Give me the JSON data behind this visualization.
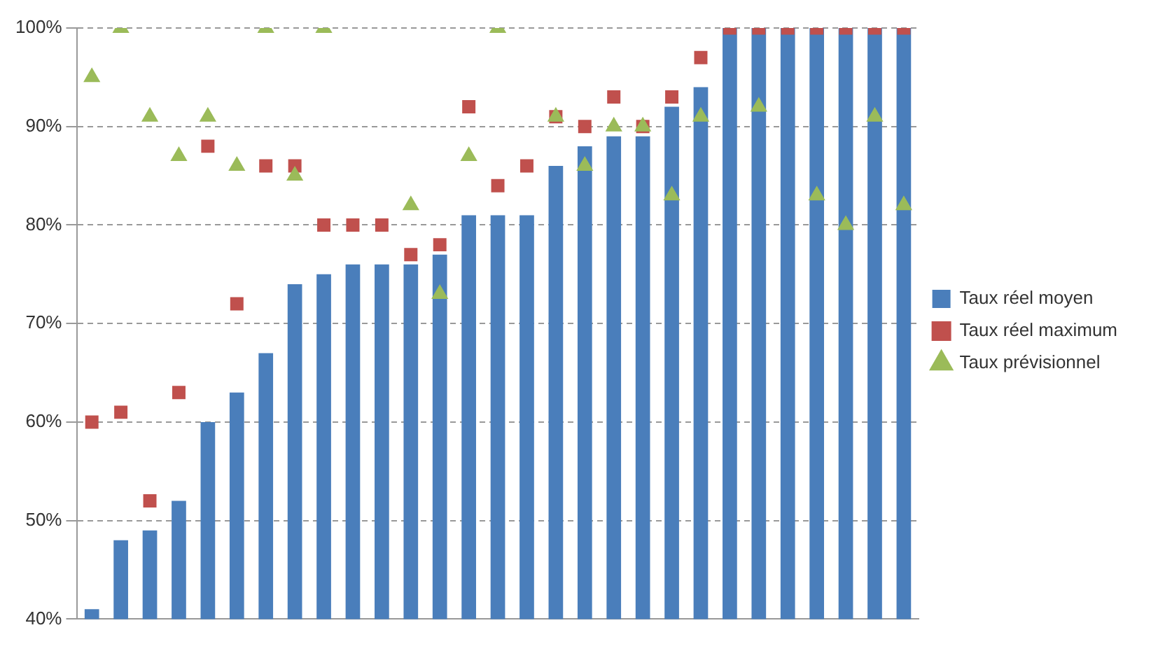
{
  "chart_data": {
    "type": "bar",
    "categories": [
      null,
      null,
      null,
      null,
      null,
      null,
      null,
      null,
      null,
      null,
      null,
      null,
      null,
      null,
      null,
      null,
      null,
      null,
      null,
      null,
      null,
      null,
      null,
      null,
      null,
      null,
      null,
      null,
      null
    ],
    "series": [
      {
        "name": "Taux réel moyen",
        "color": "#4a7ebb",
        "values": [
          41,
          48,
          49,
          52,
          60,
          63,
          67,
          74,
          75,
          76,
          76,
          76,
          77,
          81,
          81,
          81,
          86,
          88,
          89,
          89,
          92,
          94,
          100,
          100,
          100,
          100,
          100,
          100,
          100
        ]
      },
      {
        "name": "Taux réel maximum",
        "type": "scatter",
        "marker": "square",
        "color": "#c0504d",
        "values": [
          60,
          61,
          52,
          63,
          88,
          72,
          86,
          86,
          80,
          80,
          80,
          77,
          78,
          92,
          84,
          86,
          91,
          90,
          93,
          90,
          93,
          97,
          100,
          100,
          100,
          100,
          100,
          100,
          100
        ]
      },
      {
        "name": "Taux prévisionnel",
        "type": "scatter",
        "marker": "triangle",
        "color": "#9bbb59",
        "values": [
          95,
          100,
          91,
          87,
          91,
          86,
          100,
          85,
          100,
          null,
          null,
          82,
          73,
          87,
          100,
          null,
          91,
          86,
          90,
          90,
          83,
          91,
          null,
          92,
          null,
          83,
          80,
          91,
          82
        ]
      }
    ],
    "ylim": [
      40,
      100
    ],
    "yticks": [
      {
        "value": 40,
        "label": "40%"
      },
      {
        "value": 50,
        "label": "50%"
      },
      {
        "value": 60,
        "label": "60%"
      },
      {
        "value": 70,
        "label": "70%"
      },
      {
        "value": 80,
        "label": "80%"
      },
      {
        "value": 90,
        "label": "90%"
      },
      {
        "value": 100,
        "label": "100%"
      }
    ],
    "grid": "y",
    "legend": "right",
    "tick_labels": "y"
  }
}
